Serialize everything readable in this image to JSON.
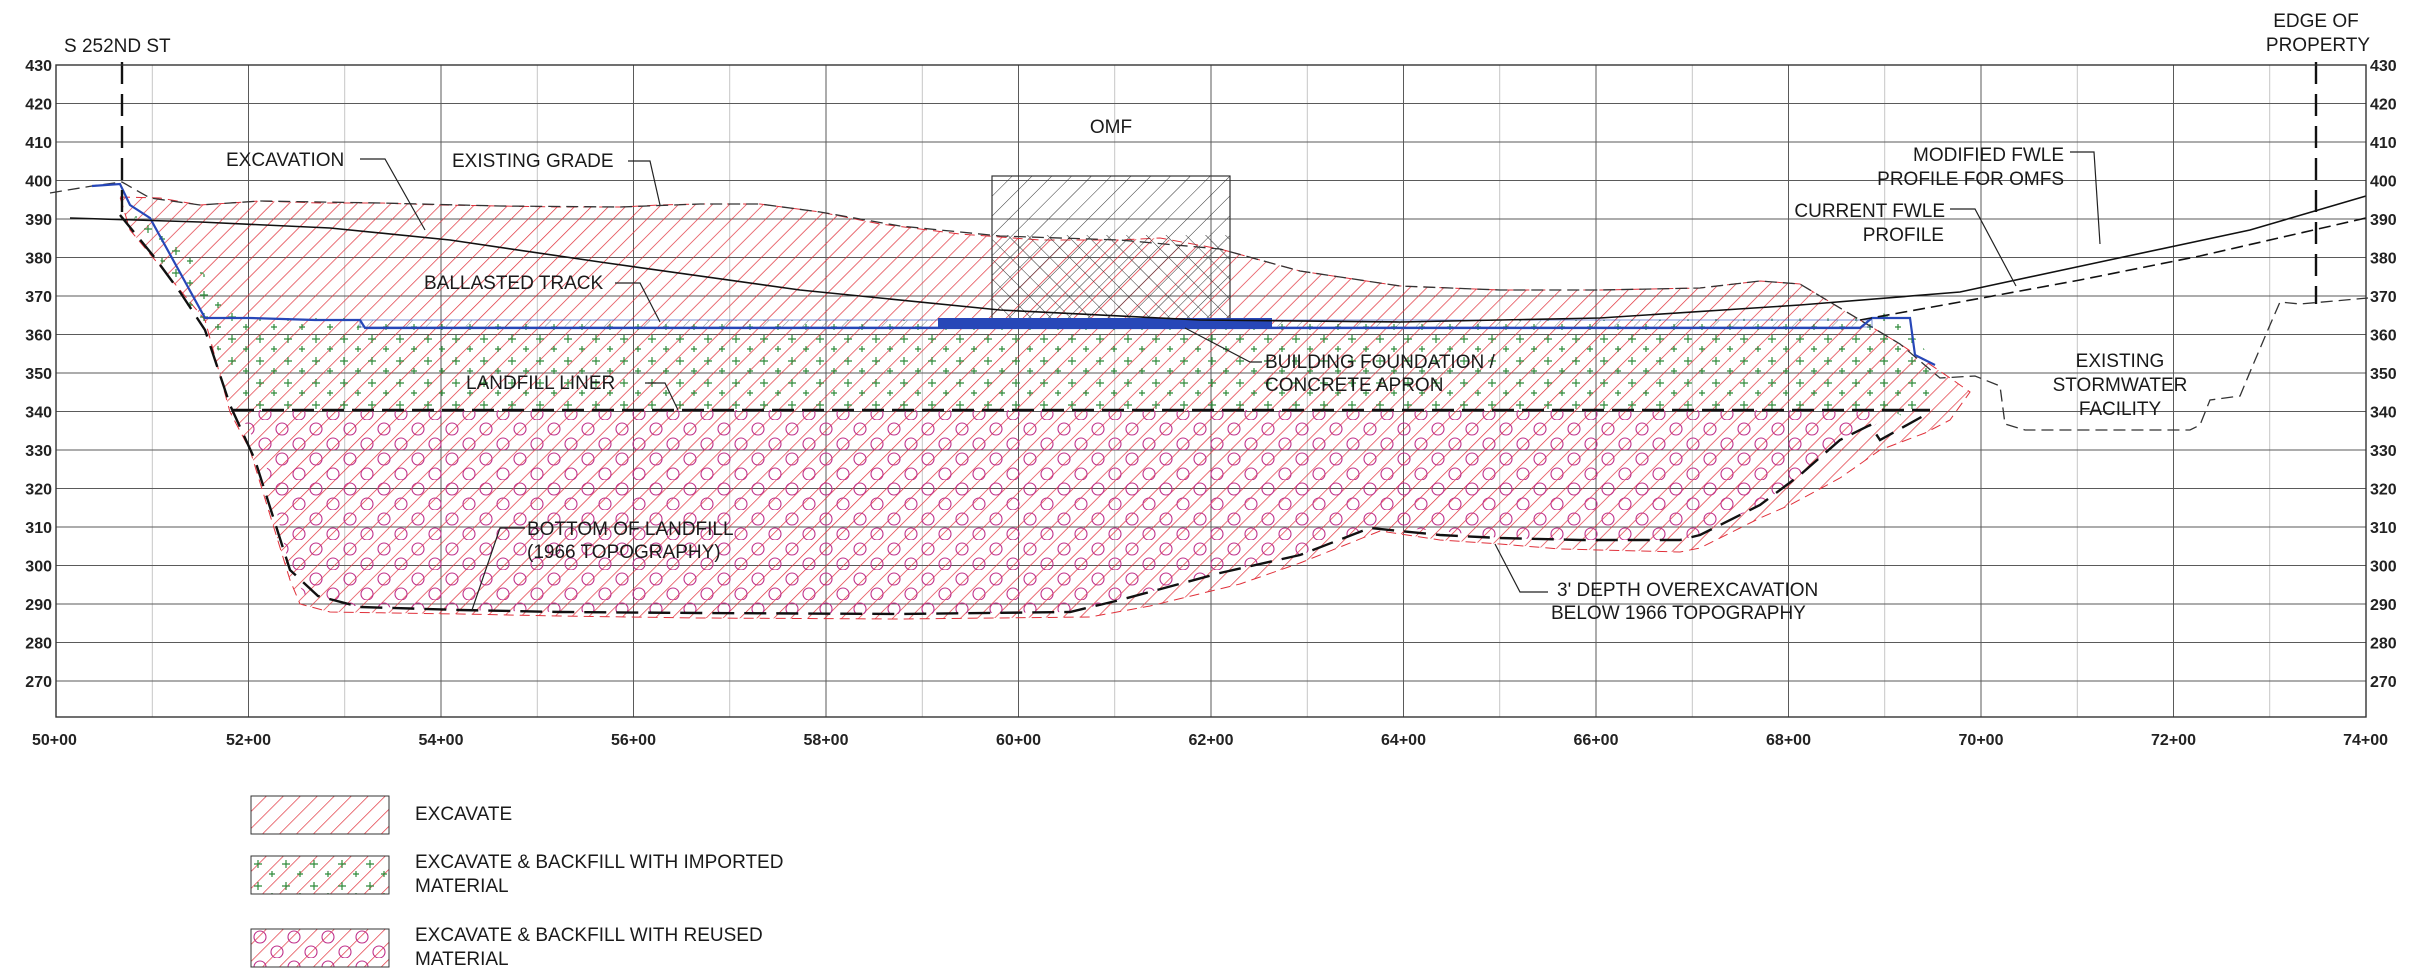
{
  "diagram": {
    "axes": {
      "y_ticks": [
        "430",
        "420",
        "410",
        "400",
        "390",
        "380",
        "370",
        "360",
        "350",
        "340",
        "330",
        "320",
        "310",
        "300",
        "290",
        "280",
        "270"
      ],
      "x_ticks": [
        "50+00",
        "52+00",
        "54+00",
        "56+00",
        "58+00",
        "60+00",
        "62+00",
        "64+00",
        "66+00",
        "68+00",
        "70+00",
        "72+00",
        "74+00"
      ]
    },
    "callouts": {
      "street": "S 252ND ST",
      "edge_line1": "EDGE OF",
      "edge_line2": "PROPERTY",
      "omf": "OMF",
      "excavation": "EXCAVATION",
      "existing_grade": "EXISTING GRADE",
      "ballasted_track": "BALLASTED TRACK",
      "landfill_liner": "LANDFILL LINER",
      "building_line1": "BUILDING FOUNDATION /",
      "building_line2": "CONCRETE APRON",
      "bottom_line1": "BOTTOM OF LANDFILL",
      "bottom_line2": "(1966 TOPOGRAPHY)",
      "overex_line1": "3' DEPTH OVEREXCAVATION",
      "overex_line2": "BELOW 1966 TOPOGRAPHY",
      "modified_line1": "MODIFIED FWLE",
      "modified_line2": "PROFILE FOR OMFS",
      "current_line1": "CURRENT FWLE",
      "current_line2": "PROFILE",
      "storm_line1": "EXISTING",
      "storm_line2": "STORMWATER",
      "storm_line3": "FACILITY"
    }
  },
  "legend": {
    "items": [
      {
        "line1": "EXCAVATE",
        "line2": ""
      },
      {
        "line1": "EXCAVATE & BACKFILL WITH IMPORTED",
        "line2": "MATERIAL"
      },
      {
        "line1": "EXCAVATE & BACKFILL WITH REUSED",
        "line2": "MATERIAL"
      }
    ]
  },
  "colors": {
    "hatch_red": "#e0303a",
    "plus_green": "#2e8b3a",
    "circle_magenta": "#c0308a",
    "track_blue": "#2747b8",
    "grid_major": "#5a5a5a",
    "grid_minor": "#b8b8b8"
  }
}
